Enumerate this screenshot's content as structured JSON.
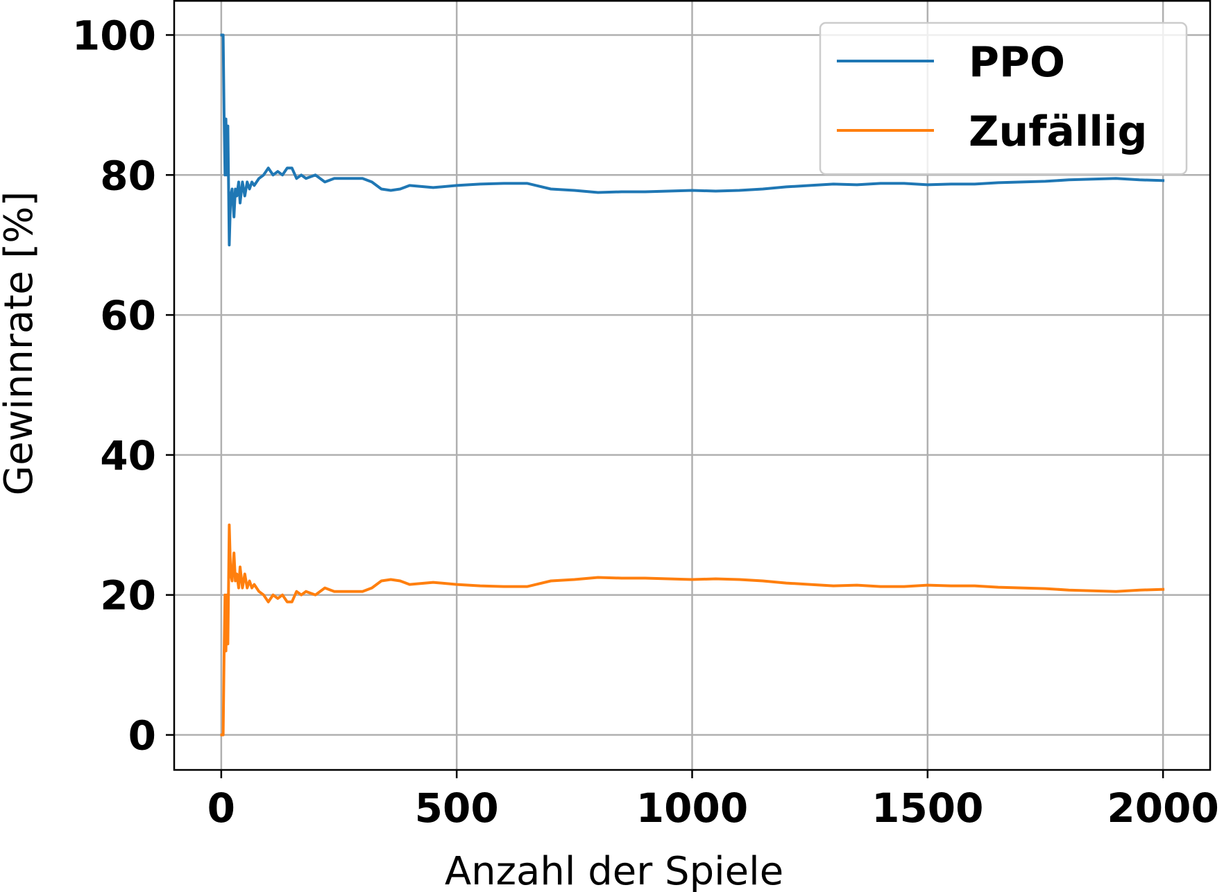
{
  "chart_data": {
    "type": "line",
    "title": "",
    "xlabel": "Anzahl der Spiele",
    "ylabel": "Gewinnrate [%]",
    "xlim": [
      -100,
      2100
    ],
    "ylim": [
      -5,
      105
    ],
    "xticks": [
      0,
      500,
      1000,
      1500,
      2000
    ],
    "yticks": [
      0,
      20,
      40,
      60,
      80,
      100
    ],
    "xtick_labels": [
      "0",
      "500",
      "1000",
      "1500",
      "2000"
    ],
    "ytick_labels": [
      "0",
      "20",
      "40",
      "60",
      "80",
      "100"
    ],
    "grid": true,
    "legend_position": "top-right",
    "series": [
      {
        "name": "PPO",
        "color": "#1f77b4",
        "x": [
          1,
          4,
          6,
          8,
          10,
          12,
          14,
          17,
          20,
          23,
          27,
          30,
          33,
          37,
          40,
          45,
          50,
          55,
          60,
          65,
          70,
          80,
          90,
          100,
          110,
          120,
          130,
          140,
          150,
          160,
          170,
          180,
          200,
          220,
          240,
          260,
          280,
          300,
          320,
          340,
          360,
          380,
          400,
          450,
          500,
          550,
          600,
          650,
          700,
          750,
          800,
          850,
          900,
          950,
          1000,
          1050,
          1100,
          1150,
          1200,
          1250,
          1300,
          1350,
          1400,
          1450,
          1500,
          1550,
          1600,
          1650,
          1700,
          1750,
          1800,
          1850,
          1900,
          1950,
          2000
        ],
        "y": [
          100,
          100,
          89,
          80,
          88,
          80,
          87,
          70,
          77,
          78,
          74,
          78,
          77,
          79,
          76,
          79,
          77,
          79,
          78,
          79,
          78.5,
          79.5,
          80,
          81,
          80,
          80.5,
          80,
          81,
          81,
          79.5,
          80,
          79.5,
          80,
          79,
          79.5,
          79.5,
          79.5,
          79.5,
          79,
          78,
          77.8,
          78,
          78.5,
          78.2,
          78.5,
          78.7,
          78.8,
          78.8,
          78,
          77.8,
          77.5,
          77.6,
          77.6,
          77.7,
          77.8,
          77.7,
          77.8,
          78,
          78.3,
          78.5,
          78.7,
          78.6,
          78.8,
          78.8,
          78.6,
          78.7,
          78.7,
          78.9,
          79,
          79.1,
          79.3,
          79.4,
          79.5,
          79.3,
          79.2
        ]
      },
      {
        "name": "Zufällig",
        "color": "#ff7f0e",
        "x": [
          1,
          4,
          6,
          8,
          10,
          12,
          14,
          17,
          20,
          23,
          27,
          30,
          33,
          37,
          40,
          45,
          50,
          55,
          60,
          65,
          70,
          80,
          90,
          100,
          110,
          120,
          130,
          140,
          150,
          160,
          170,
          180,
          200,
          220,
          240,
          260,
          280,
          300,
          320,
          340,
          360,
          380,
          400,
          450,
          500,
          550,
          600,
          650,
          700,
          750,
          800,
          850,
          900,
          950,
          1000,
          1050,
          1100,
          1150,
          1200,
          1250,
          1300,
          1350,
          1400,
          1450,
          1500,
          1550,
          1600,
          1650,
          1700,
          1750,
          1800,
          1850,
          1900,
          1950,
          2000
        ],
        "y": [
          0,
          0,
          11,
          20,
          12,
          20,
          13,
          30,
          23,
          22,
          26,
          22,
          23,
          21,
          24,
          21,
          23,
          21,
          22,
          21,
          21.5,
          20.5,
          20,
          19,
          20,
          19.5,
          20,
          19,
          19,
          20.5,
          20,
          20.5,
          20,
          21,
          20.5,
          20.5,
          20.5,
          20.5,
          21,
          22,
          22.2,
          22,
          21.5,
          21.8,
          21.5,
          21.3,
          21.2,
          21.2,
          22,
          22.2,
          22.5,
          22.4,
          22.4,
          22.3,
          22.2,
          22.3,
          22.2,
          22,
          21.7,
          21.5,
          21.3,
          21.4,
          21.2,
          21.2,
          21.4,
          21.3,
          21.3,
          21.1,
          21,
          20.9,
          20.7,
          20.6,
          20.5,
          20.7,
          20.8
        ]
      }
    ]
  }
}
